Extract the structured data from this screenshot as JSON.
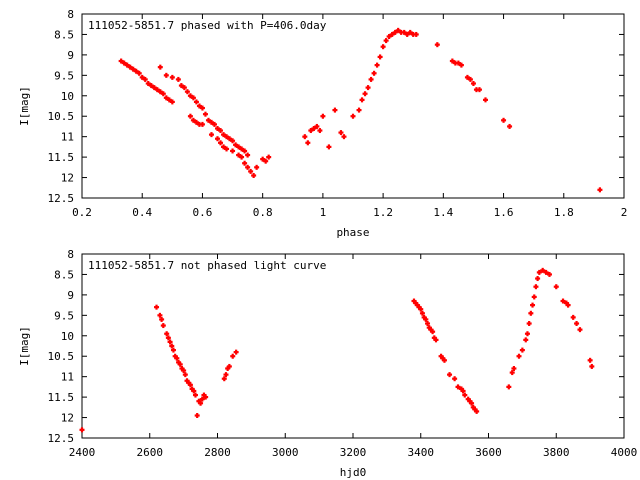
{
  "chart_data": [
    {
      "type": "scatter",
      "title": "111052-5851.7 phased with P=406.0day",
      "xlabel": "phase",
      "ylabel": "I[mag]",
      "xlim": [
        0.2,
        2
      ],
      "ylim": [
        12.5,
        8
      ],
      "y_reversed": true,
      "xticks": [
        "0.2",
        "0.4",
        "0.6",
        "0.8",
        "1",
        "1.2",
        "1.4",
        "1.6",
        "1.8",
        "2"
      ],
      "yticks": [
        "8",
        "8.5",
        "9",
        "9.5",
        "10",
        "10.5",
        "11",
        "11.5",
        "12",
        "12.5"
      ],
      "grid": false,
      "legend": "none",
      "color": "#ff0000",
      "marker": "plus",
      "series": [
        {
          "x": [
            0.33,
            0.34,
            0.35,
            0.36,
            0.37,
            0.38,
            0.39,
            0.4,
            0.41,
            0.42,
            0.43,
            0.44,
            0.45,
            0.46,
            0.47,
            0.48,
            0.49,
            0.5,
            0.46,
            0.48,
            0.5,
            0.52,
            0.53,
            0.54,
            0.55,
            0.56,
            0.57,
            0.58,
            0.59,
            0.6,
            0.61,
            0.62,
            0.63,
            0.64,
            0.65,
            0.66,
            0.67,
            0.68,
            0.69,
            0.7,
            0.71,
            0.72,
            0.73,
            0.74,
            0.75,
            0.56,
            0.57,
            0.58,
            0.59,
            0.6,
            0.63,
            0.65,
            0.66,
            0.67,
            0.68,
            0.7,
            0.72,
            0.73,
            0.74,
            0.75,
            0.76,
            0.77,
            0.78,
            0.8,
            0.81,
            0.82
          ],
          "y": [
            9.15,
            9.2,
            9.25,
            9.3,
            9.35,
            9.4,
            9.45,
            9.55,
            9.6,
            9.7,
            9.75,
            9.8,
            9.85,
            9.9,
            9.95,
            10.05,
            10.1,
            10.15,
            9.3,
            9.5,
            9.55,
            9.6,
            9.75,
            9.8,
            9.9,
            10.0,
            10.05,
            10.15,
            10.25,
            10.3,
            10.45,
            10.6,
            10.65,
            10.7,
            10.8,
            10.85,
            10.95,
            11.0,
            11.05,
            11.1,
            11.2,
            11.25,
            11.3,
            11.35,
            11.45,
            10.5,
            10.6,
            10.65,
            10.7,
            10.7,
            10.95,
            11.05,
            11.15,
            11.25,
            11.3,
            11.35,
            11.45,
            11.5,
            11.65,
            11.75,
            11.85,
            11.95,
            11.75,
            11.55,
            11.6,
            11.5
          ]
        },
        {
          "x": [
            0.94,
            0.95,
            0.96,
            0.97,
            0.98,
            0.99,
            1.0,
            1.02,
            1.04,
            1.06,
            1.07,
            1.1,
            1.12,
            1.13,
            1.14,
            1.15,
            1.16,
            1.17,
            1.18,
            1.19,
            1.2,
            1.21,
            1.22,
            1.23,
            1.24,
            1.25,
            1.26,
            1.27,
            1.28,
            1.29,
            1.3,
            1.31,
            1.38,
            1.43,
            1.44,
            1.45,
            1.46,
            1.48,
            1.49,
            1.5,
            1.51,
            1.52,
            1.54,
            1.6,
            1.62,
            1.92
          ],
          "y": [
            11.0,
            11.15,
            10.85,
            10.8,
            10.75,
            10.85,
            10.5,
            11.25,
            10.35,
            10.9,
            11.0,
            10.5,
            10.35,
            10.1,
            9.95,
            9.8,
            9.6,
            9.45,
            9.25,
            9.05,
            8.8,
            8.65,
            8.55,
            8.5,
            8.45,
            8.4,
            8.45,
            8.45,
            8.5,
            8.45,
            8.5,
            8.5,
            8.75,
            9.15,
            9.2,
            9.2,
            9.25,
            9.55,
            9.6,
            9.7,
            9.85,
            9.85,
            10.1,
            10.6,
            10.75,
            12.3
          ]
        }
      ]
    },
    {
      "type": "scatter",
      "title": "111052-5851.7 not phased light curve",
      "xlabel": "hjd0",
      "ylabel": "I[mag]",
      "xlim": [
        2400,
        4000
      ],
      "ylim": [
        12.5,
        8
      ],
      "y_reversed": true,
      "xticks": [
        "2400",
        "2600",
        "2800",
        "3000",
        "3200",
        "3400",
        "3600",
        "3800",
        "4000"
      ],
      "yticks": [
        "8",
        "8.5",
        "9",
        "9.5",
        "10",
        "10.5",
        "11",
        "11.5",
        "12",
        "12.5"
      ],
      "grid": false,
      "legend": "none",
      "color": "#ff0000",
      "marker": "plus",
      "series": [
        {
          "x": [
            2400,
            2620,
            2630,
            2635,
            2640,
            2650,
            2655,
            2660,
            2665,
            2670,
            2675,
            2680,
            2685,
            2690,
            2695,
            2700,
            2705,
            2710,
            2715,
            2720,
            2725,
            2730,
            2735,
            2740,
            2745,
            2750,
            2755,
            2760,
            2765,
            2820,
            2825,
            2830,
            2835,
            2845,
            2855,
            3380,
            3385,
            3390,
            3395,
            3400,
            3405,
            3410,
            3415,
            3420,
            3425,
            3430,
            3435,
            3440,
            3445,
            3460,
            3465,
            3470,
            3485,
            3500,
            3510,
            3520,
            3525,
            3530,
            3540,
            3545,
            3550,
            3555,
            3560,
            3565,
            3660,
            3670,
            3675,
            3690,
            3700,
            3710,
            3715,
            3720,
            3725,
            3730,
            3735,
            3740,
            3745,
            3750,
            3760,
            3770,
            3780,
            3800,
            3820,
            3830,
            3835,
            3850,
            3860,
            3870,
            3900,
            3905
          ],
          "y": [
            12.3,
            9.3,
            9.5,
            9.6,
            9.75,
            9.95,
            10.05,
            10.15,
            10.25,
            10.35,
            10.5,
            10.55,
            10.65,
            10.7,
            10.8,
            10.85,
            10.95,
            11.1,
            11.15,
            11.2,
            11.3,
            11.35,
            11.45,
            11.95,
            11.6,
            11.65,
            11.55,
            11.45,
            11.5,
            11.05,
            10.95,
            10.8,
            10.75,
            10.5,
            10.4,
            9.15,
            9.2,
            9.25,
            9.3,
            9.35,
            9.45,
            9.55,
            9.6,
            9.7,
            9.8,
            9.85,
            9.9,
            10.05,
            10.1,
            10.5,
            10.55,
            10.6,
            10.95,
            11.05,
            11.25,
            11.3,
            11.35,
            11.45,
            11.55,
            11.6,
            11.65,
            11.75,
            11.8,
            11.85,
            11.25,
            10.9,
            10.8,
            10.5,
            10.35,
            10.1,
            9.95,
            9.7,
            9.45,
            9.25,
            9.05,
            8.8,
            8.6,
            8.45,
            8.4,
            8.45,
            8.5,
            8.8,
            9.15,
            9.2,
            9.25,
            9.55,
            9.7,
            9.85,
            10.6,
            10.75
          ]
        }
      ]
    }
  ]
}
